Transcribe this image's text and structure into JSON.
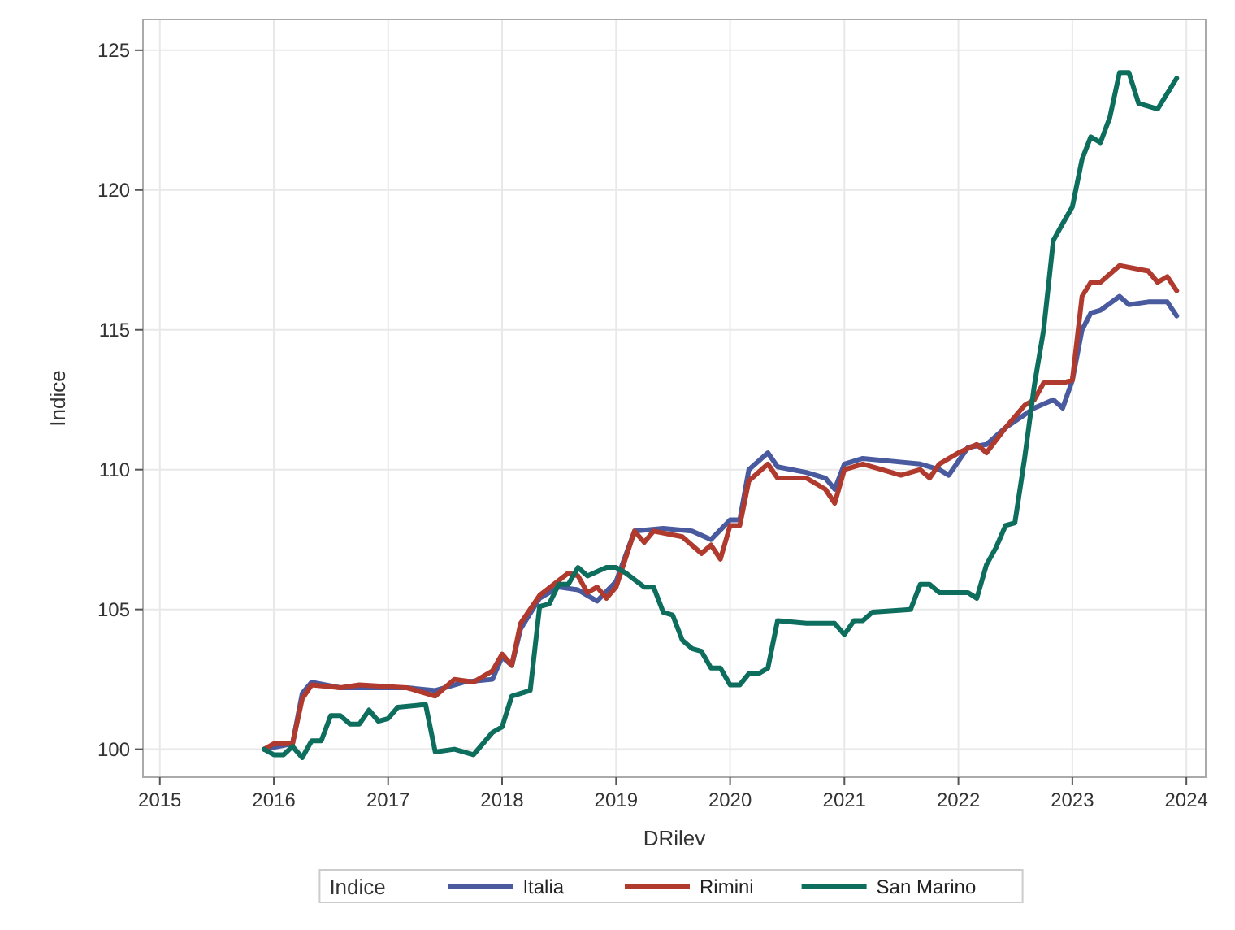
{
  "chart_data": {
    "type": "line",
    "xlabel": "DRilev",
    "ylabel": "Indice",
    "legend_title": "Indice",
    "legend": "bottom",
    "grid": true,
    "line_style": "solid",
    "xlim": [
      "2014-11-08",
      "2024-03-03"
    ],
    "xticks": [
      {
        "value": "2015",
        "label": "2015"
      },
      {
        "value": "2016",
        "label": "2016"
      },
      {
        "value": "2017",
        "label": "2017"
      },
      {
        "value": "2018",
        "label": "2018"
      },
      {
        "value": "2019",
        "label": "2019"
      },
      {
        "value": "2020",
        "label": "2020"
      },
      {
        "value": "2021",
        "label": "2021"
      },
      {
        "value": "2022",
        "label": "2022"
      },
      {
        "value": "2023",
        "label": "2023"
      },
      {
        "value": "2024",
        "label": "2024"
      }
    ],
    "ylim": [
      99,
      126.1
    ],
    "yticks": [
      100,
      105,
      110,
      115,
      120,
      125
    ],
    "series": [
      {
        "name": "Italia",
        "color": "#4a5a9f",
        "x": [
          "2015-12",
          "2016-03",
          "2016-04",
          "2016-05",
          "2016-08",
          "2017-03",
          "2017-06",
          "2017-09",
          "2017-12",
          "2018-01",
          "2018-02",
          "2018-03",
          "2018-05",
          "2018-07",
          "2018-09",
          "2018-11",
          "2019-01",
          "2019-03",
          "2019-06",
          "2019-09",
          "2019-11",
          "2020-01",
          "2020-02",
          "2020-03",
          "2020-05",
          "2020-06",
          "2020-09",
          "2020-11",
          "2020-12",
          "2021-01",
          "2021-03",
          "2021-06",
          "2021-09",
          "2021-11",
          "2021-12",
          "2022-02",
          "2022-04",
          "2022-06",
          "2022-09",
          "2022-11",
          "2022-12",
          "2023-01",
          "2023-02",
          "2023-03",
          "2023-04",
          "2023-06",
          "2023-07",
          "2023-09",
          "2023-11",
          "2023-12"
        ],
        "values": [
          100.0,
          100.2,
          102.0,
          102.4,
          102.2,
          102.2,
          102.1,
          102.4,
          102.5,
          103.3,
          103.0,
          104.3,
          105.4,
          105.8,
          105.7,
          105.3,
          106.0,
          107.8,
          107.9,
          107.8,
          107.5,
          108.2,
          108.2,
          110.0,
          110.6,
          110.1,
          109.9,
          109.7,
          109.3,
          110.2,
          110.4,
          110.3,
          110.2,
          110.0,
          109.8,
          110.8,
          110.9,
          111.5,
          112.2,
          112.5,
          112.2,
          113.2,
          115.0,
          115.6,
          115.7,
          116.2,
          115.9,
          116.0,
          116.0,
          115.5
        ]
      },
      {
        "name": "Rimini",
        "color": "#b03a2e",
        "x": [
          "2015-12",
          "2016-01",
          "2016-03",
          "2016-04",
          "2016-05",
          "2016-08",
          "2016-10",
          "2017-03",
          "2017-06",
          "2017-08",
          "2017-10",
          "2017-12",
          "2018-01",
          "2018-02",
          "2018-03",
          "2018-05",
          "2018-08",
          "2018-09",
          "2018-10",
          "2018-11",
          "2018-12",
          "2019-01",
          "2019-03",
          "2019-04",
          "2019-05",
          "2019-08",
          "2019-10",
          "2019-11",
          "2019-12",
          "2020-01",
          "2020-02",
          "2020-03",
          "2020-05",
          "2020-06",
          "2020-09",
          "2020-11",
          "2020-12",
          "2021-01",
          "2021-03",
          "2021-05",
          "2021-07",
          "2021-09",
          "2021-10",
          "2021-11",
          "2022-01",
          "2022-03",
          "2022-04",
          "2022-06",
          "2022-08",
          "2022-09",
          "2022-10",
          "2022-12",
          "2023-01",
          "2023-02",
          "2023-03",
          "2023-04",
          "2023-06",
          "2023-09",
          "2023-10",
          "2023-11",
          "2023-12"
        ],
        "values": [
          100.0,
          100.2,
          100.2,
          101.8,
          102.3,
          102.2,
          102.3,
          102.2,
          101.9,
          102.5,
          102.4,
          102.8,
          103.4,
          103.0,
          104.5,
          105.5,
          106.3,
          106.2,
          105.6,
          105.8,
          105.4,
          105.8,
          107.8,
          107.4,
          107.8,
          107.6,
          107.0,
          107.3,
          106.8,
          108.0,
          108.0,
          109.6,
          110.2,
          109.7,
          109.7,
          109.3,
          108.8,
          110.0,
          110.2,
          110.0,
          109.8,
          110.0,
          109.7,
          110.2,
          110.6,
          110.9,
          110.6,
          111.5,
          112.3,
          112.5,
          113.1,
          113.1,
          113.2,
          116.2,
          116.7,
          116.7,
          117.3,
          117.1,
          116.7,
          116.9,
          116.4
        ]
      },
      {
        "name": "San Marino",
        "color": "#0e6e5e",
        "x": [
          "2015-12",
          "2016-01",
          "2016-02",
          "2016-03",
          "2016-04",
          "2016-05",
          "2016-06",
          "2016-07",
          "2016-08",
          "2016-09",
          "2016-10",
          "2016-11",
          "2016-12",
          "2017-01",
          "2017-02",
          "2017-05",
          "2017-06",
          "2017-08",
          "2017-10",
          "2017-12",
          "2018-01",
          "2018-02",
          "2018-04",
          "2018-05",
          "2018-06",
          "2018-07",
          "2018-08",
          "2018-09",
          "2018-10",
          "2018-12",
          "2019-01",
          "2019-02",
          "2019-04",
          "2019-05",
          "2019-06",
          "2019-07",
          "2019-08",
          "2019-09",
          "2019-10",
          "2019-11",
          "2019-12",
          "2020-01",
          "2020-02",
          "2020-03",
          "2020-04",
          "2020-05",
          "2020-06",
          "2020-09",
          "2020-12",
          "2021-01",
          "2021-02",
          "2021-03",
          "2021-04",
          "2021-08",
          "2021-09",
          "2021-10",
          "2021-11",
          "2022-02",
          "2022-03",
          "2022-04",
          "2022-05",
          "2022-06",
          "2022-07",
          "2022-08",
          "2022-09",
          "2022-10",
          "2022-11",
          "2022-12",
          "2023-01",
          "2023-02",
          "2023-03",
          "2023-04",
          "2023-05",
          "2023-06",
          "2023-07",
          "2023-08",
          "2023-10",
          "2023-12"
        ],
        "values": [
          100.0,
          99.8,
          99.8,
          100.1,
          99.7,
          100.3,
          100.3,
          101.2,
          101.2,
          100.9,
          100.9,
          101.4,
          101.0,
          101.1,
          101.5,
          101.6,
          99.9,
          100.0,
          99.8,
          100.6,
          100.8,
          101.9,
          102.1,
          105.1,
          105.2,
          105.9,
          105.9,
          106.5,
          106.2,
          106.5,
          106.5,
          106.3,
          105.8,
          105.8,
          104.9,
          104.8,
          103.9,
          103.6,
          103.5,
          102.9,
          102.9,
          102.3,
          102.3,
          102.7,
          102.7,
          102.9,
          104.6,
          104.5,
          104.5,
          104.1,
          104.6,
          104.6,
          104.9,
          105.0,
          105.9,
          105.9,
          105.6,
          105.6,
          105.4,
          106.6,
          107.2,
          108.0,
          108.1,
          110.4,
          113.0,
          115.0,
          118.2,
          118.8,
          119.4,
          121.1,
          121.9,
          121.7,
          122.6,
          124.2,
          124.2,
          123.1,
          122.9,
          124.0
        ]
      }
    ]
  }
}
